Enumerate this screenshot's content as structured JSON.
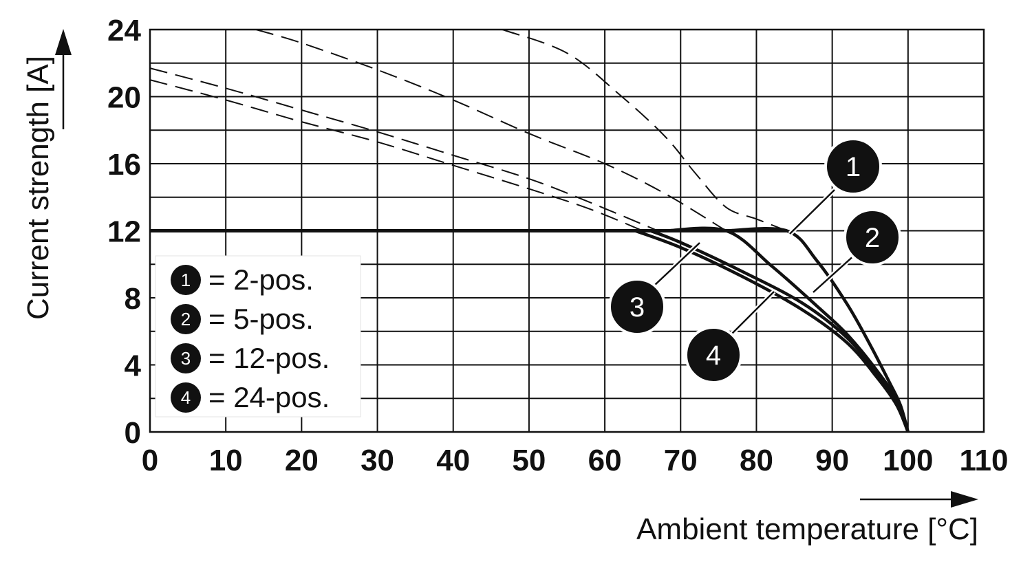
{
  "chart_data": {
    "type": "line",
    "xlabel": "Ambient temperature [°C]",
    "ylabel": "Current strength [A]",
    "xlim": [
      0,
      110
    ],
    "ylim": [
      0,
      24
    ],
    "x_ticks": [
      "0",
      "10",
      "20",
      "30",
      "40",
      "50",
      "60",
      "70",
      "80",
      "90",
      "100",
      "110"
    ],
    "y_ticks": [
      "0",
      "4",
      "8",
      "12",
      "16",
      "20",
      "24"
    ],
    "grid": true,
    "limit_line": {
      "y": 12,
      "x_end": 84
    },
    "legend": {
      "position": "bottom-left",
      "entries": [
        {
          "number": "1",
          "text": "= 2-pos."
        },
        {
          "number": "2",
          "text": "= 5-pos."
        },
        {
          "number": "3",
          "text": "= 12-pos."
        },
        {
          "number": "4",
          "text": "= 24-pos."
        }
      ]
    },
    "series": [
      {
        "label_number": "1",
        "dashed": [
          [
            46.5,
            24
          ],
          [
            55,
            22.6
          ],
          [
            62,
            20.1
          ],
          [
            68,
            17.6
          ],
          [
            72,
            15.4
          ],
          [
            76,
            13.4
          ],
          [
            80,
            12.7
          ],
          [
            84,
            12
          ]
        ],
        "solid": [
          [
            76,
            12
          ],
          [
            84,
            12
          ],
          [
            88,
            10.2
          ],
          [
            92,
            7.6
          ],
          [
            95,
            5.2
          ],
          [
            97.5,
            3.0
          ],
          [
            99,
            1.6
          ],
          [
            100,
            0
          ]
        ]
      },
      {
        "label_number": "2",
        "dashed": [
          [
            14,
            24
          ],
          [
            20,
            23.2
          ],
          [
            30,
            21.6
          ],
          [
            40,
            19.8
          ],
          [
            50,
            17.8
          ],
          [
            60,
            16.0
          ],
          [
            68,
            14.2
          ],
          [
            76,
            12
          ]
        ],
        "solid": [
          [
            68,
            12
          ],
          [
            76,
            12
          ],
          [
            82,
            9.9
          ],
          [
            88,
            7.5
          ],
          [
            92,
            5.8
          ],
          [
            96,
            3.6
          ],
          [
            98.5,
            1.9
          ],
          [
            100,
            0
          ]
        ]
      },
      {
        "label_number": "3",
        "dashed": [
          [
            0,
            21.7
          ],
          [
            10,
            20.5
          ],
          [
            20,
            19.2
          ],
          [
            30,
            17.9
          ],
          [
            40,
            16.5
          ],
          [
            50,
            15.1
          ],
          [
            58,
            13.7
          ],
          [
            67,
            12
          ]
        ],
        "solid": [
          [
            66,
            12
          ],
          [
            70,
            11.3
          ],
          [
            78,
            9.6
          ],
          [
            86,
            7.7
          ],
          [
            92,
            5.6
          ],
          [
            96,
            3.4
          ],
          [
            98.5,
            1.7
          ],
          [
            100,
            0
          ]
        ]
      },
      {
        "label_number": "4",
        "dashed": [
          [
            0,
            21.0
          ],
          [
            10,
            19.8
          ],
          [
            20,
            18.5
          ],
          [
            30,
            17.3
          ],
          [
            40,
            15.9
          ],
          [
            50,
            14.5
          ],
          [
            58,
            13.3
          ],
          [
            65,
            12
          ]
        ],
        "solid": [
          [
            64,
            12
          ],
          [
            70,
            11.0
          ],
          [
            78,
            9.3
          ],
          [
            86,
            7.3
          ],
          [
            92,
            5.3
          ],
          [
            96,
            3.2
          ],
          [
            98.5,
            1.6
          ],
          [
            100,
            0
          ]
        ]
      }
    ]
  }
}
